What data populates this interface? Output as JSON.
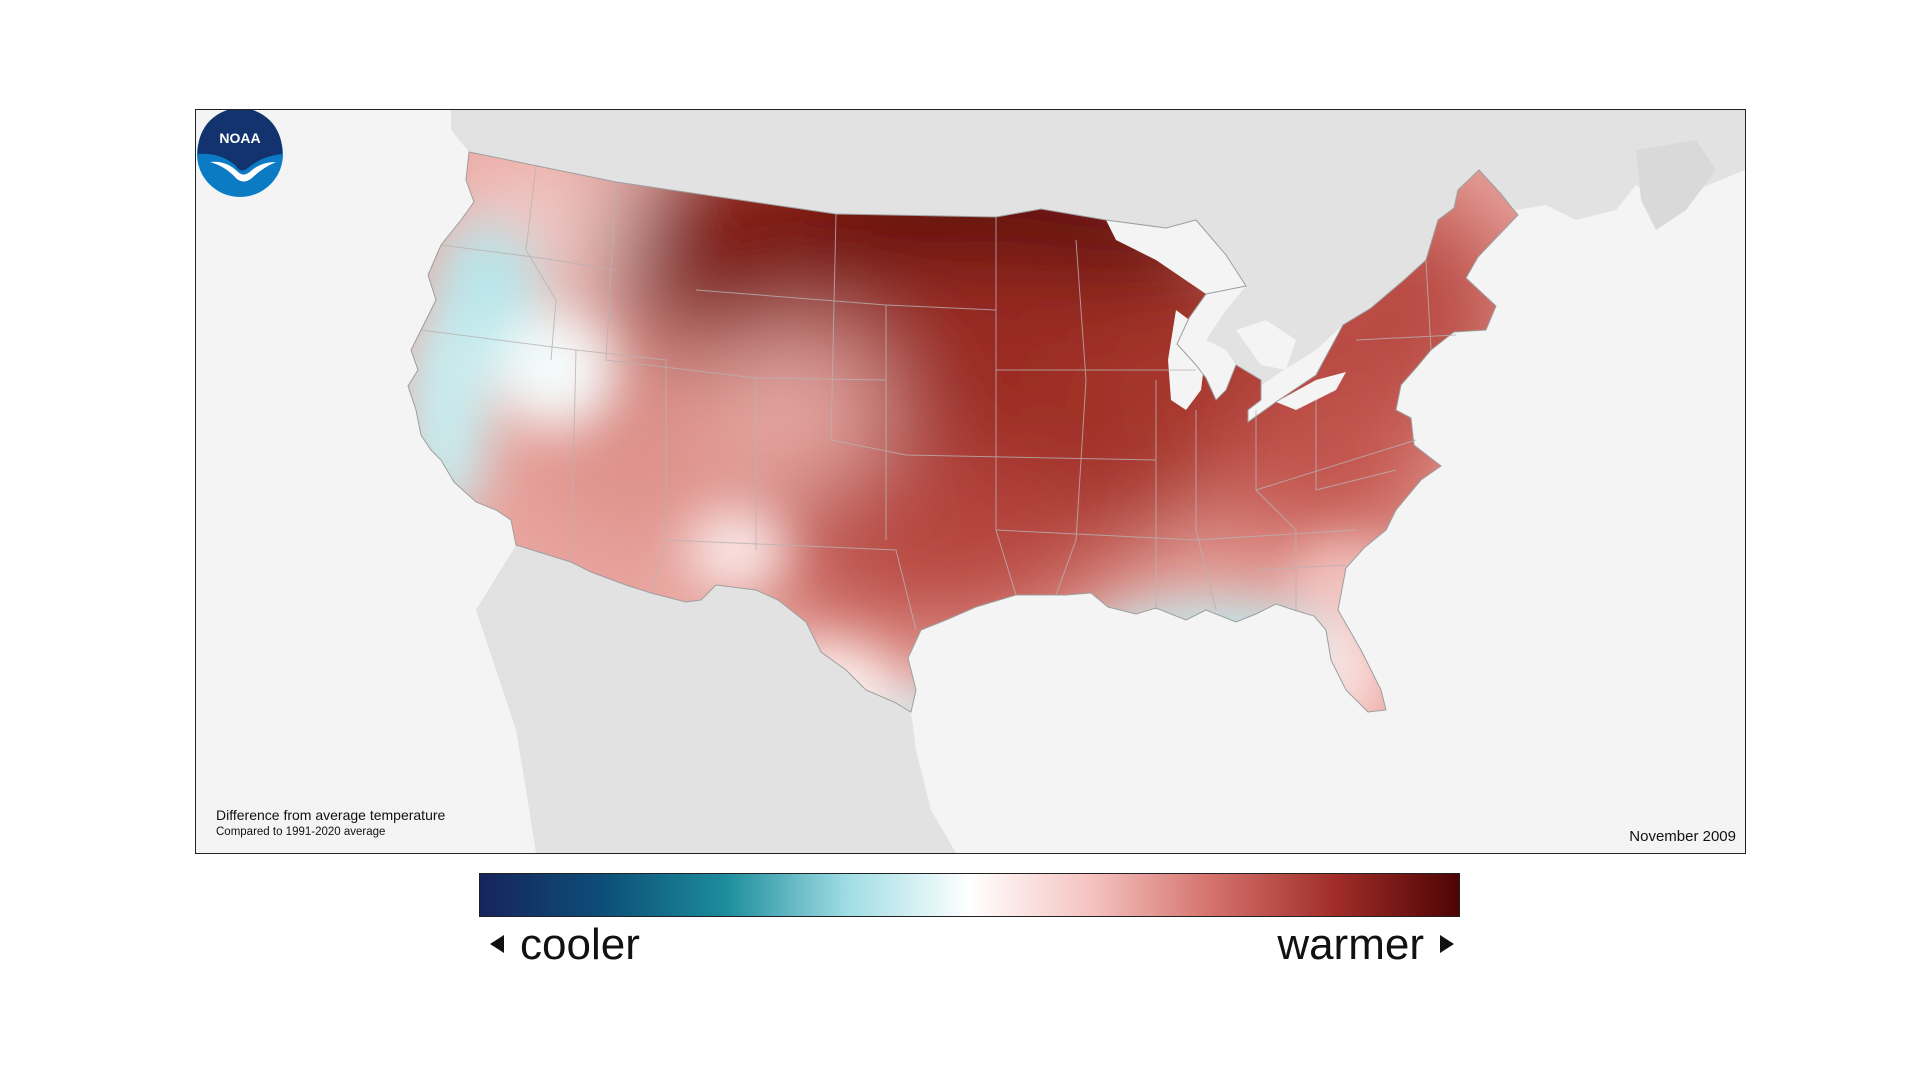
{
  "map": {
    "caption_title": "Difference from average temperature",
    "caption_subtitle": "Compared to 1991-2020 average",
    "date_label": "November 2009",
    "logo_text": "NOAA",
    "background_land_color": "#e2e2e2",
    "ocean_color": "#f4f4f4"
  },
  "legend": {
    "cooler_label": "cooler",
    "warmer_label": "warmer",
    "gradient_colors": [
      "#16245c",
      "#0d4e78",
      "#1c8c9c",
      "#9fdde4",
      "#ffffff",
      "#f5c2c0",
      "#d4706a",
      "#a02c28",
      "#4e0404"
    ]
  }
}
